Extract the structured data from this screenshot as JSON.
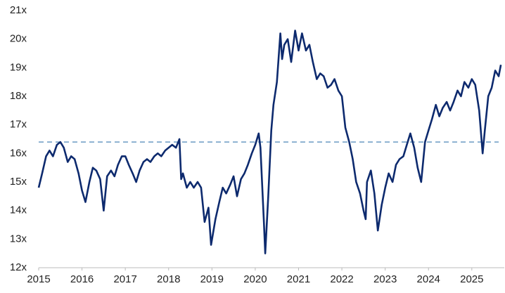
{
  "chart_data": {
    "type": "line",
    "x": [
      2015.0,
      2015.08,
      2015.17,
      2015.25,
      2015.33,
      2015.42,
      2015.5,
      2015.58,
      2015.67,
      2015.75,
      2015.83,
      2015.92,
      2016.0,
      2016.08,
      2016.17,
      2016.25,
      2016.33,
      2016.42,
      2016.5,
      2016.58,
      2016.67,
      2016.75,
      2016.83,
      2016.92,
      2017.0,
      2017.08,
      2017.17,
      2017.25,
      2017.33,
      2017.42,
      2017.5,
      2017.58,
      2017.67,
      2017.75,
      2017.83,
      2017.92,
      2018.0,
      2018.08,
      2018.17,
      2018.25,
      2018.29,
      2018.33,
      2018.42,
      2018.5,
      2018.58,
      2018.67,
      2018.75,
      2018.83,
      2018.92,
      2018.98,
      2019.08,
      2019.17,
      2019.25,
      2019.33,
      2019.42,
      2019.5,
      2019.58,
      2019.67,
      2019.75,
      2019.83,
      2019.92,
      2020.0,
      2020.08,
      2020.12,
      2020.2,
      2020.23,
      2020.3,
      2020.37,
      2020.42,
      2020.5,
      2020.58,
      2020.62,
      2020.67,
      2020.75,
      2020.83,
      2020.92,
      2021.0,
      2021.08,
      2021.17,
      2021.25,
      2021.33,
      2021.42,
      2021.5,
      2021.58,
      2021.67,
      2021.75,
      2021.83,
      2021.92,
      2022.0,
      2022.08,
      2022.17,
      2022.25,
      2022.33,
      2022.42,
      2022.5,
      2022.55,
      2022.58,
      2022.67,
      2022.75,
      2022.83,
      2022.92,
      2023.0,
      2023.08,
      2023.17,
      2023.25,
      2023.33,
      2023.42,
      2023.5,
      2023.58,
      2023.67,
      2023.75,
      2023.83,
      2023.92,
      2024.0,
      2024.08,
      2024.17,
      2024.25,
      2024.33,
      2024.42,
      2024.5,
      2024.58,
      2024.67,
      2024.75,
      2024.83,
      2024.92,
      2025.0,
      2025.08,
      2025.17,
      2025.25,
      2025.3,
      2025.38,
      2025.46,
      2025.54,
      2025.62,
      2025.67
    ],
    "series": [
      {
        "color": "#0d2a6e",
        "values": [
          14.8,
          15.3,
          15.9,
          16.1,
          15.9,
          16.3,
          16.4,
          16.2,
          15.7,
          15.9,
          15.8,
          15.3,
          14.7,
          14.3,
          15.0,
          15.5,
          15.4,
          15.1,
          14.0,
          15.2,
          15.4,
          15.2,
          15.6,
          15.9,
          15.9,
          15.6,
          15.3,
          15.0,
          15.4,
          15.7,
          15.8,
          15.7,
          15.9,
          16.0,
          15.9,
          16.1,
          16.2,
          16.3,
          16.2,
          16.5,
          15.1,
          15.3,
          14.8,
          15.0,
          14.8,
          15.0,
          14.8,
          13.6,
          14.1,
          12.8,
          13.7,
          14.3,
          14.8,
          14.6,
          14.9,
          15.2,
          14.5,
          15.1,
          15.3,
          15.6,
          16.0,
          16.3,
          16.7,
          16.2,
          13.6,
          12.5,
          14.5,
          16.8,
          17.7,
          18.5,
          20.2,
          19.3,
          19.8,
          20.0,
          19.2,
          20.3,
          19.6,
          20.2,
          19.6,
          19.8,
          19.2,
          18.6,
          18.8,
          18.7,
          18.3,
          18.4,
          18.6,
          18.2,
          18.0,
          16.9,
          16.4,
          15.8,
          15.0,
          14.6,
          14.0,
          13.7,
          15.0,
          15.4,
          14.6,
          13.3,
          14.2,
          14.8,
          15.3,
          15.0,
          15.6,
          15.8,
          15.9,
          16.3,
          16.7,
          16.2,
          15.5,
          15.0,
          16.4,
          16.8,
          17.2,
          17.7,
          17.3,
          17.6,
          17.8,
          17.5,
          17.8,
          18.2,
          18.0,
          18.5,
          18.3,
          18.6,
          18.4,
          17.5,
          16.0,
          16.8,
          18.0,
          18.3,
          18.9,
          18.7,
          19.1
        ]
      }
    ],
    "reference_line": {
      "value": 16.4,
      "color": "#6b9bc3",
      "dashed": true
    },
    "xlim": [
      2015,
      2025.75
    ],
    "xticks": [
      2015,
      2016,
      2017,
      2018,
      2019,
      2020,
      2021,
      2022,
      2023,
      2024,
      2025
    ],
    "ylim": [
      12,
      21
    ],
    "yticks": [
      {
        "value": 12,
        "label": "12x"
      },
      {
        "value": 13,
        "label": "13x"
      },
      {
        "value": 14,
        "label": "14x"
      },
      {
        "value": 15,
        "label": "15x"
      },
      {
        "value": 16,
        "label": "16x"
      },
      {
        "value": 17,
        "label": "17x"
      },
      {
        "value": 18,
        "label": "18x"
      },
      {
        "value": 19,
        "label": "19x"
      },
      {
        "value": 20,
        "label": "20x"
      },
      {
        "value": 21,
        "label": "21x"
      }
    ]
  }
}
